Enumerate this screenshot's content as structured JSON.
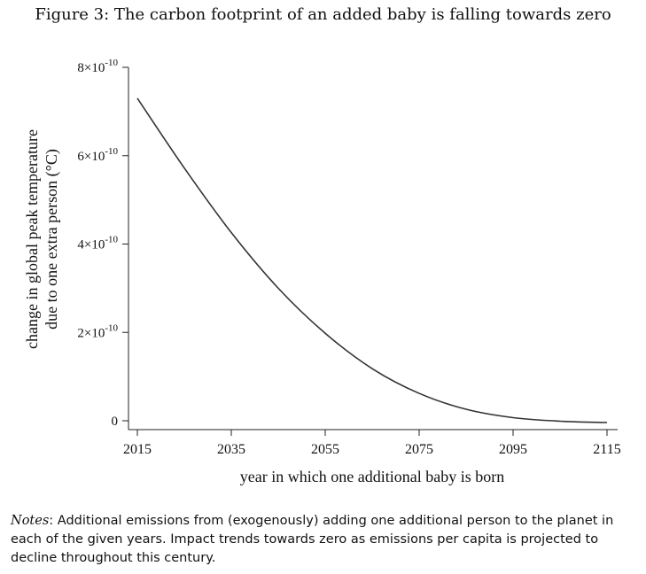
{
  "title": "Figure 3: The carbon footprint of an added baby is falling towards zero",
  "notes": {
    "label": "Notes",
    "text": ": Additional emissions from (exogenously) adding one additional person to the planet in each of the given years. Impact trends towards zero as emissions per capita is projected to decline throughout this century."
  },
  "chart_data": {
    "type": "line",
    "xlabel": "year in which one additional baby is born",
    "ylabel_line1": "change in global peak temperature",
    "ylabel_line2": "due to one extra person (°C)",
    "xlim": [
      2015,
      2115
    ],
    "ylim": [
      0,
      8e-10
    ],
    "x_ticks": [
      2015,
      2035,
      2055,
      2075,
      2095,
      2115
    ],
    "y_ticks": [
      {
        "value": 0,
        "mantissa": "0",
        "exp": ""
      },
      {
        "value": 2e-10,
        "mantissa": "2×10",
        "exp": "-10"
      },
      {
        "value": 4e-10,
        "mantissa": "4×10",
        "exp": "-10"
      },
      {
        "value": 6e-10,
        "mantissa": "6×10",
        "exp": "-10"
      },
      {
        "value": 8e-10,
        "mantissa": "8×10",
        "exp": "-10"
      }
    ],
    "series": [
      {
        "x": [
          2015,
          2025,
          2035,
          2045,
          2055,
          2065,
          2075,
          2085,
          2095,
          2105,
          2115
        ],
        "y": [
          7.3e-10,
          5.72e-10,
          4.26e-10,
          3e-10,
          1.98e-10,
          1.18e-10,
          6.2e-11,
          2.6e-11,
          7e-12,
          -1e-12,
          -4e-12
        ]
      }
    ],
    "line_color": "#333333",
    "grid": false
  }
}
